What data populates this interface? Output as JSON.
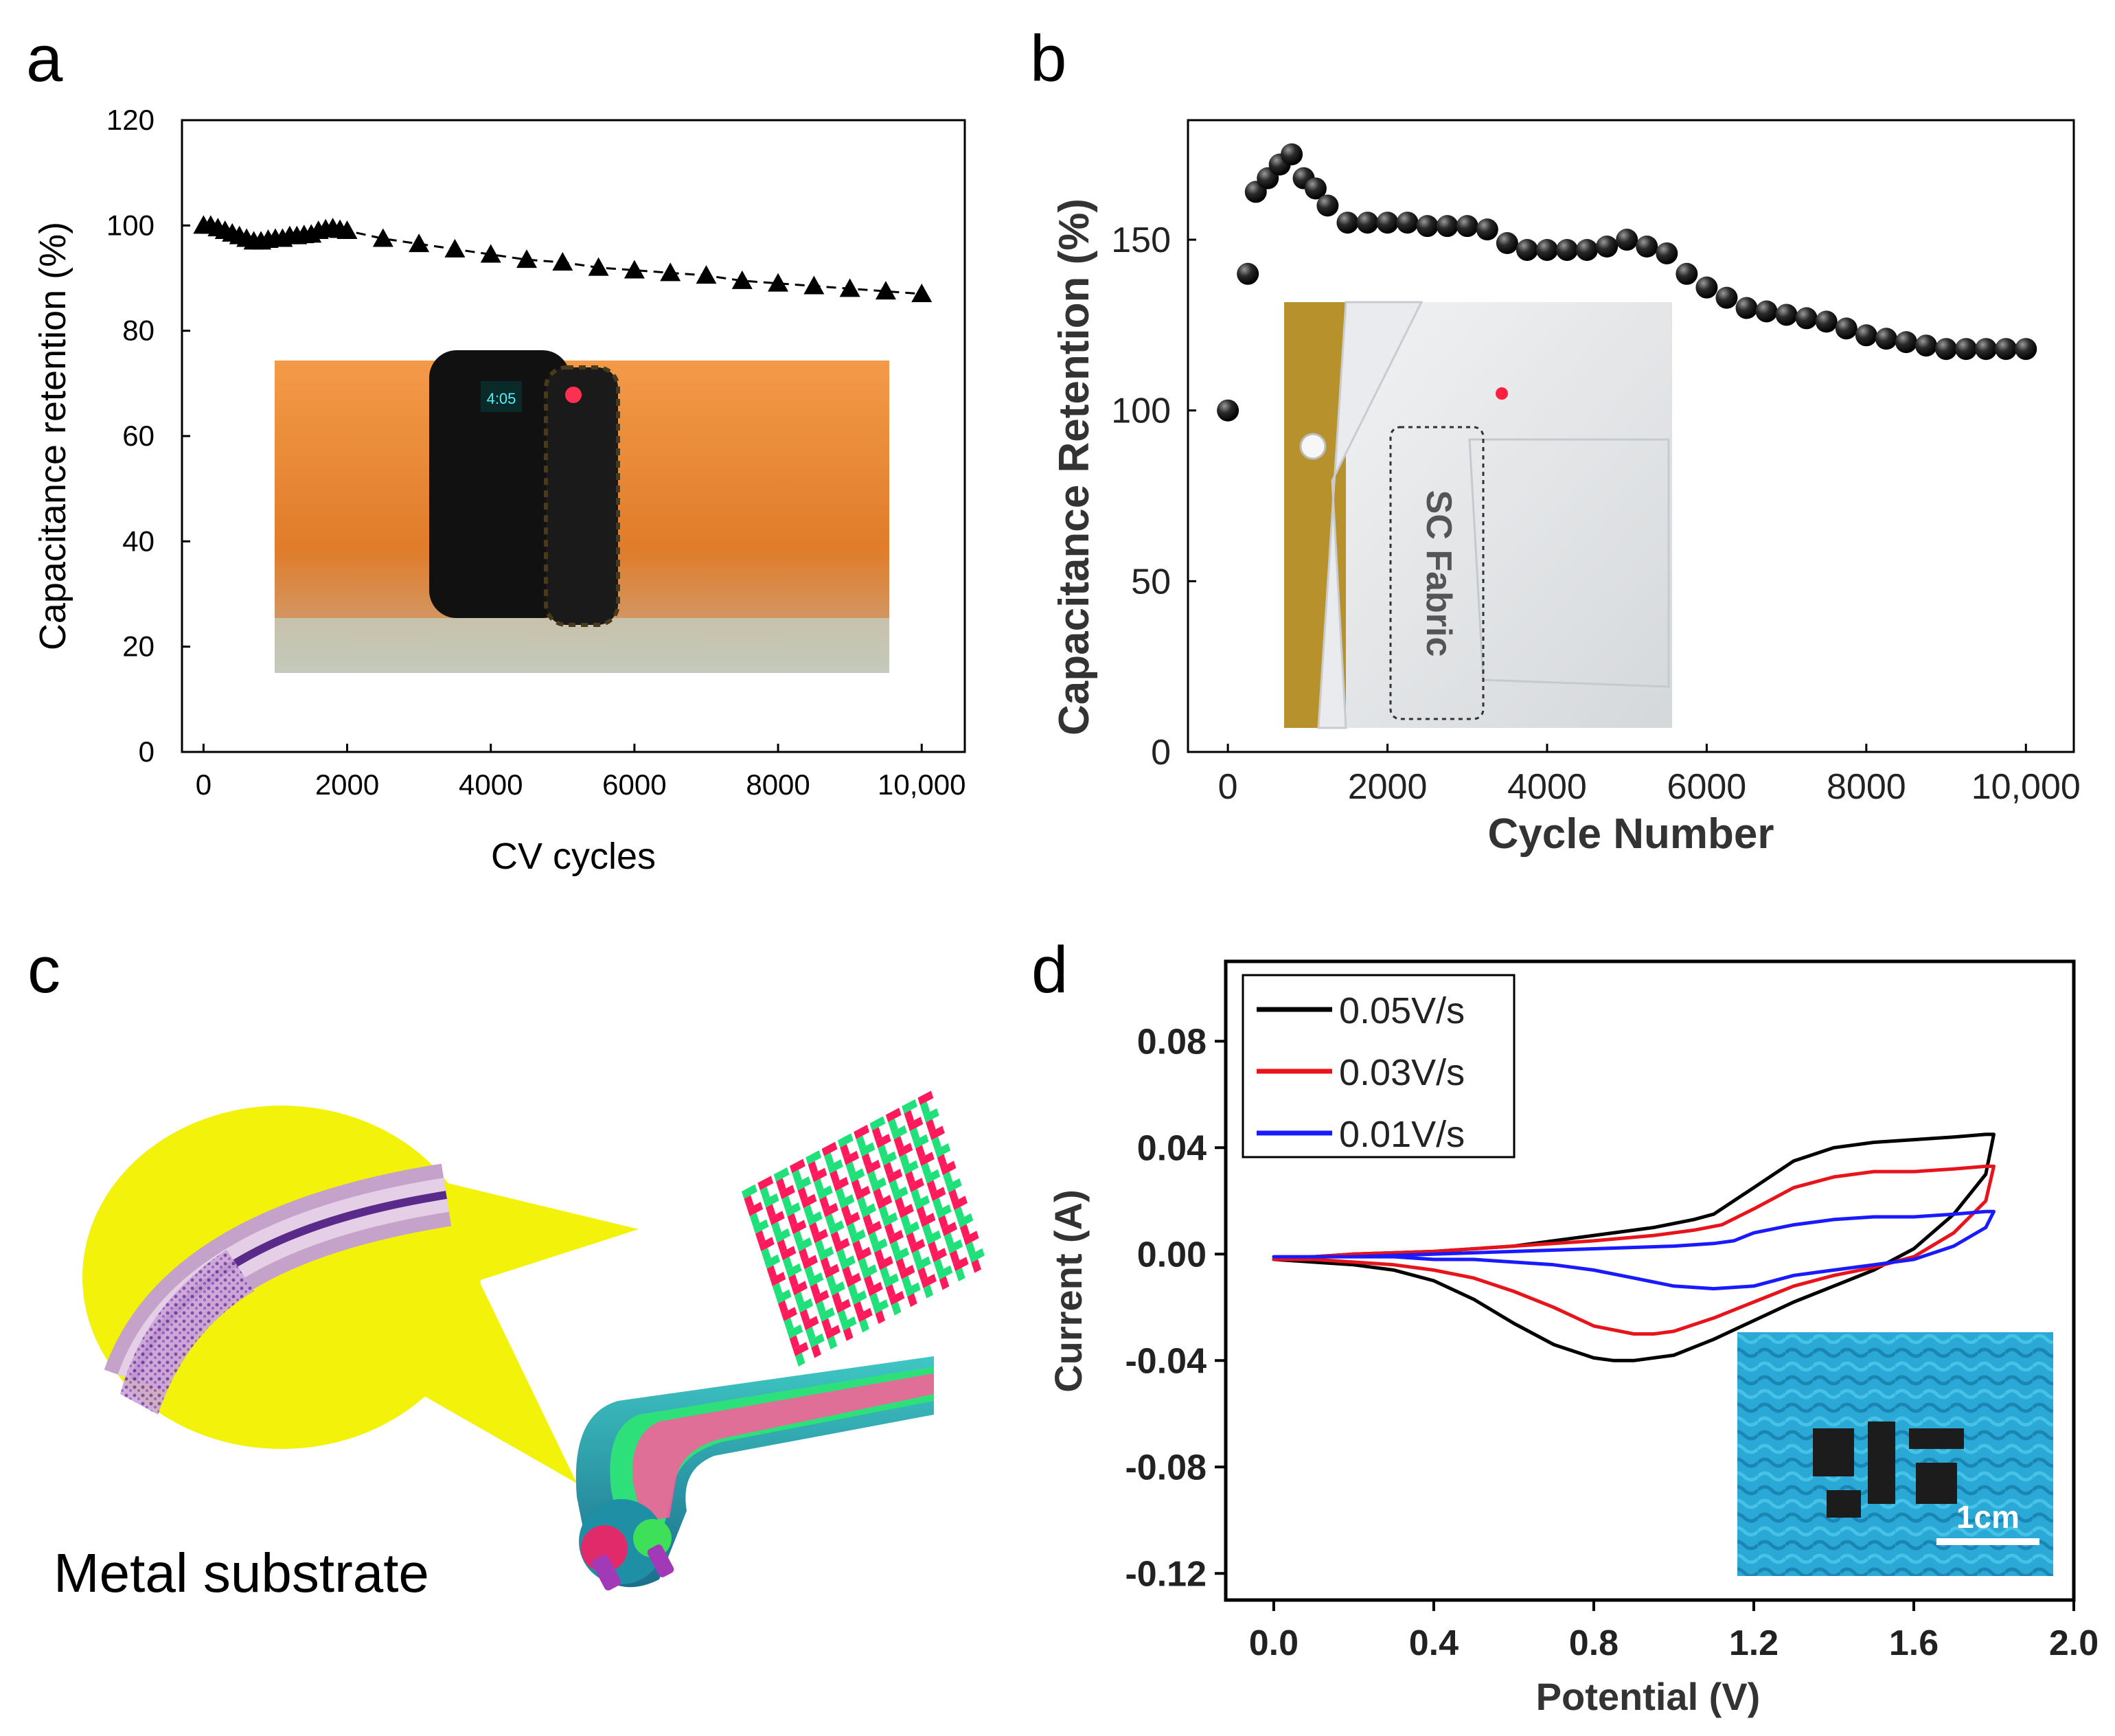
{
  "panels": {
    "a": "a",
    "b": "b",
    "c": "c",
    "d": "d"
  },
  "colors": {
    "black": "#000000",
    "red": "#e8141b",
    "blue": "#1a1aff",
    "yellow": "#f2f20a",
    "skin": "#e98a3a",
    "fabric_blue": "#2aa9d6",
    "lab_coat": "#e6e8ea"
  },
  "panel_c": {
    "caption": "Metal substrate"
  },
  "chart_data": [
    {
      "type": "scatter",
      "panel": "a",
      "title": "",
      "xlabel": "CV cycles",
      "ylabel": "Capacitance retention (%)",
      "xlim": [
        -300,
        10600
      ],
      "ylim": [
        0,
        120
      ],
      "xticks": [
        0,
        2000,
        4000,
        6000,
        8000,
        10000
      ],
      "xtick_labels": [
        "0",
        "2000",
        "4000",
        "6000",
        "8000",
        "10,000"
      ],
      "yticks": [
        0,
        20,
        40,
        60,
        80,
        100,
        120
      ],
      "ytick_labels": [
        "0",
        "20",
        "40",
        "60",
        "80",
        "100",
        "120"
      ],
      "marker": "triangle",
      "line_style": "dashed",
      "series": [
        {
          "name": "retention",
          "x": [
            0,
            100,
            200,
            300,
            400,
            500,
            600,
            700,
            800,
            900,
            1000,
            1100,
            1200,
            1300,
            1400,
            1500,
            1600,
            1700,
            1800,
            1900,
            2000,
            2500,
            3000,
            3500,
            4000,
            4500,
            5000,
            5500,
            6000,
            6500,
            7000,
            7500,
            8000,
            8500,
            9000,
            9500,
            10000
          ],
          "y": [
            100,
            100,
            99.5,
            99,
            98.5,
            98,
            97.5,
            97,
            97,
            97.3,
            97.5,
            97.5,
            98,
            98,
            98.2,
            98.3,
            99,
            99.3,
            99.5,
            99.2,
            99,
            97.5,
            96.5,
            95.5,
            94.5,
            93.5,
            93,
            92,
            91.5,
            91,
            90.5,
            89.5,
            89,
            88.5,
            88,
            87.5,
            87
          ]
        }
      ],
      "inset_photo": {
        "watch_display": "4:05"
      }
    },
    {
      "type": "scatter",
      "panel": "b",
      "title": "",
      "xlabel": "Cycle Number",
      "ylabel": "Capacitance Retention (%)",
      "xlim": [
        -500,
        10600
      ],
      "ylim": [
        0,
        185
      ],
      "xticks": [
        0,
        2000,
        4000,
        6000,
        8000,
        10000
      ],
      "xtick_labels": [
        "0",
        "2000",
        "4000",
        "6000",
        "8000",
        "10,000"
      ],
      "yticks": [
        0,
        50,
        100,
        150
      ],
      "ytick_labels": [
        "0",
        "50",
        "100",
        "150"
      ],
      "marker": "sphere",
      "series": [
        {
          "name": "retention",
          "x": [
            0,
            250,
            350,
            500,
            650,
            800,
            950,
            1100,
            1250,
            1500,
            1750,
            2000,
            2250,
            2500,
            2750,
            3000,
            3250,
            3500,
            3750,
            4000,
            4250,
            4500,
            4750,
            5000,
            5250,
            5500,
            5750,
            6000,
            6250,
            6500,
            6750,
            7000,
            7250,
            7500,
            7750,
            8000,
            8250,
            8500,
            8750,
            9000,
            9250,
            9500,
            9750,
            10000
          ],
          "y": [
            100,
            140,
            164,
            168,
            172,
            175,
            168,
            165,
            160,
            155,
            155,
            155,
            155,
            154,
            154,
            154,
            153,
            149,
            147,
            147,
            147,
            147,
            148,
            150,
            148,
            146,
            140,
            136,
            133,
            130,
            129,
            128,
            127,
            126,
            124,
            122,
            121,
            120,
            119,
            118,
            118,
            118,
            118,
            118
          ]
        }
      ],
      "inset_photo": {
        "label": "SC Fabric"
      }
    },
    {
      "type": "line",
      "panel": "d",
      "title": "",
      "xlabel": "Potential (V)",
      "ylabel": "Current (A)",
      "xlim": [
        -0.12,
        2.0
      ],
      "ylim": [
        -0.13,
        0.11
      ],
      "xticks": [
        0.0,
        0.4,
        0.8,
        1.2,
        1.6,
        2.0
      ],
      "xtick_labels": [
        "0.0",
        "0.4",
        "0.8",
        "1.2",
        "1.6",
        "2.0"
      ],
      "yticks": [
        -0.12,
        -0.08,
        -0.04,
        0.0,
        0.04,
        0.08
      ],
      "ytick_labels": [
        "-0.12",
        "-0.08",
        "-0.04",
        "0.00",
        "0.04",
        "0.08"
      ],
      "legend_position": "top-left",
      "series": [
        {
          "name": "0.05V/s",
          "color": "#000000",
          "x": [
            0.0,
            0.2,
            0.4,
            0.6,
            0.8,
            0.95,
            1.05,
            1.1,
            1.2,
            1.3,
            1.4,
            1.5,
            1.6,
            1.7,
            1.78,
            1.8,
            1.78,
            1.7,
            1.6,
            1.5,
            1.4,
            1.3,
            1.2,
            1.1,
            1.0,
            0.9,
            0.85,
            0.8,
            0.7,
            0.6,
            0.5,
            0.4,
            0.3,
            0.2,
            0.1,
            0.0
          ],
          "y": [
            -0.002,
            0.0,
            0.001,
            0.003,
            0.007,
            0.01,
            0.013,
            0.015,
            0.025,
            0.035,
            0.04,
            0.042,
            0.043,
            0.044,
            0.045,
            0.045,
            0.03,
            0.015,
            0.002,
            -0.006,
            -0.012,
            -0.018,
            -0.025,
            -0.032,
            -0.038,
            -0.04,
            -0.04,
            -0.039,
            -0.034,
            -0.026,
            -0.017,
            -0.01,
            -0.006,
            -0.004,
            -0.003,
            -0.002
          ]
        },
        {
          "name": "0.03V/s",
          "color": "#e8141b",
          "x": [
            0.0,
            0.2,
            0.4,
            0.6,
            0.8,
            0.95,
            1.05,
            1.12,
            1.2,
            1.3,
            1.4,
            1.5,
            1.6,
            1.7,
            1.78,
            1.8,
            1.78,
            1.7,
            1.6,
            1.5,
            1.4,
            1.3,
            1.2,
            1.1,
            1.0,
            0.95,
            0.9,
            0.8,
            0.7,
            0.6,
            0.5,
            0.4,
            0.3,
            0.2,
            0.1,
            0.0
          ],
          "y": [
            -0.002,
            0.0,
            0.001,
            0.003,
            0.005,
            0.007,
            0.009,
            0.011,
            0.017,
            0.025,
            0.029,
            0.031,
            0.031,
            0.032,
            0.033,
            0.033,
            0.02,
            0.008,
            -0.001,
            -0.005,
            -0.008,
            -0.012,
            -0.018,
            -0.024,
            -0.029,
            -0.03,
            -0.03,
            -0.027,
            -0.02,
            -0.014,
            -0.009,
            -0.006,
            -0.004,
            -0.003,
            -0.002,
            -0.002
          ]
        },
        {
          "name": "0.01V/s",
          "color": "#1a1aff",
          "x": [
            0.0,
            0.2,
            0.4,
            0.6,
            0.8,
            1.0,
            1.1,
            1.15,
            1.2,
            1.3,
            1.4,
            1.5,
            1.6,
            1.7,
            1.78,
            1.8,
            1.78,
            1.7,
            1.6,
            1.5,
            1.4,
            1.3,
            1.2,
            1.1,
            1.0,
            0.9,
            0.8,
            0.7,
            0.6,
            0.5,
            0.4,
            0.3,
            0.2,
            0.1,
            0.0
          ],
          "y": [
            -0.001,
            -0.001,
            0.0,
            0.001,
            0.002,
            0.003,
            0.004,
            0.005,
            0.008,
            0.011,
            0.013,
            0.014,
            0.014,
            0.015,
            0.016,
            0.016,
            0.01,
            0.003,
            -0.002,
            -0.004,
            -0.006,
            -0.008,
            -0.012,
            -0.013,
            -0.012,
            -0.009,
            -0.006,
            -0.004,
            -0.003,
            -0.002,
            -0.002,
            -0.001,
            -0.001,
            -0.001,
            -0.001
          ]
        }
      ],
      "inset_photo": {
        "scale_bar": "1cm"
      }
    }
  ]
}
